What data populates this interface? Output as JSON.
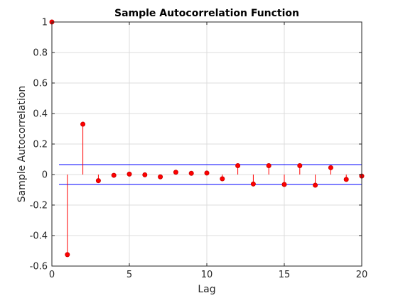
{
  "chart_data": {
    "type": "stem",
    "title": "Sample Autocorrelation Function",
    "xlabel": "Lag",
    "ylabel": "Sample Autocorrelation",
    "xlim": [
      0,
      20
    ],
    "ylim": [
      -0.6,
      1
    ],
    "xticks": [
      0,
      5,
      10,
      15,
      20
    ],
    "yticks": [
      -0.6,
      -0.4,
      -0.2,
      0,
      0.2,
      0.4,
      0.6,
      0.8,
      1
    ],
    "ytick_labels": [
      "-0.6",
      "-0.4",
      "-0.2",
      "0",
      "0.2",
      "0.4",
      "0.6",
      "0.8",
      "1"
    ],
    "grid": true,
    "lags": [
      0,
      1,
      2,
      3,
      4,
      5,
      6,
      7,
      8,
      9,
      10,
      11,
      12,
      13,
      14,
      15,
      16,
      17,
      18,
      19,
      20
    ],
    "acf": [
      1.0,
      -0.525,
      0.33,
      -0.04,
      -0.005,
      0.003,
      -0.002,
      -0.015,
      0.015,
      0.008,
      0.01,
      -0.028,
      0.058,
      -0.062,
      0.058,
      -0.065,
      0.058,
      -0.07,
      0.045,
      -0.032,
      -0.01
    ],
    "confidence_bound": 0.065,
    "colors": {
      "stem": "#ff0000",
      "marker_fill": "#ff0000",
      "marker_edge": "#d00000",
      "bounds": "#0000ff",
      "grid": "#dcdcdc",
      "axes": "#262626"
    }
  }
}
